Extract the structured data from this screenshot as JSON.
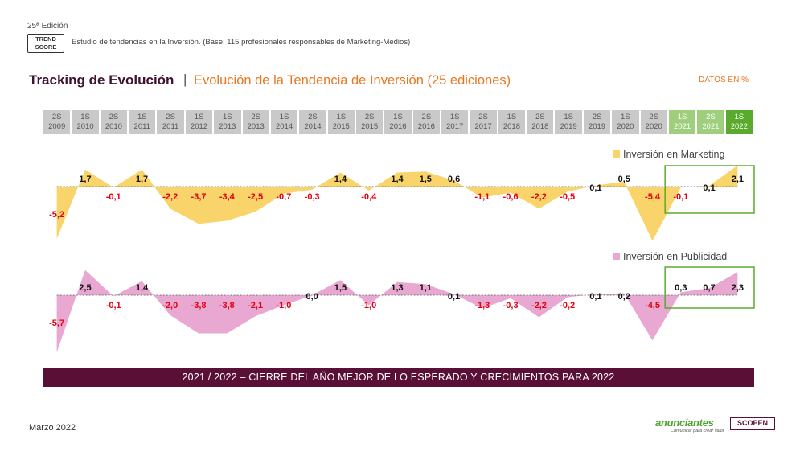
{
  "header": {
    "edition": "25ª Edición",
    "logo_line1": "TREND",
    "logo_line2": "SCORE",
    "study": "Estudio de tendencias en la Inversión. (Base: 115 profesionales responsables de Marketing-Medios)"
  },
  "title": {
    "main": "Tracking de Evolución",
    "separator": "|",
    "subtitle": "Evolución de la Tendencia de Inversión (25 ediciones)",
    "units": "DATOS EN %"
  },
  "periods": [
    {
      "half": "2S",
      "year": "2009",
      "style": "grey"
    },
    {
      "half": "1S",
      "year": "2010",
      "style": "grey"
    },
    {
      "half": "2S",
      "year": "2010",
      "style": "grey"
    },
    {
      "half": "1S",
      "year": "2011",
      "style": "grey"
    },
    {
      "half": "2S",
      "year": "2011",
      "style": "grey"
    },
    {
      "half": "1S",
      "year": "2012",
      "style": "grey"
    },
    {
      "half": "1S",
      "year": "2013",
      "style": "grey"
    },
    {
      "half": "2S",
      "year": "2013",
      "style": "grey"
    },
    {
      "half": "1S",
      "year": "2014",
      "style": "grey"
    },
    {
      "half": "2S",
      "year": "2014",
      "style": "grey"
    },
    {
      "half": "1S",
      "year": "2015",
      "style": "grey"
    },
    {
      "half": "2S",
      "year": "2015",
      "style": "grey"
    },
    {
      "half": "1S",
      "year": "2016",
      "style": "grey"
    },
    {
      "half": "2S",
      "year": "2016",
      "style": "grey"
    },
    {
      "half": "1S",
      "year": "2017",
      "style": "grey"
    },
    {
      "half": "2S",
      "year": "2017",
      "style": "grey"
    },
    {
      "half": "1S",
      "year": "2018",
      "style": "grey"
    },
    {
      "half": "2S",
      "year": "2018",
      "style": "grey"
    },
    {
      "half": "1S",
      "year": "2019",
      "style": "grey"
    },
    {
      "half": "2S",
      "year": "2019",
      "style": "grey"
    },
    {
      "half": "1S",
      "year": "2020",
      "style": "grey"
    },
    {
      "half": "2S",
      "year": "2020",
      "style": "grey"
    },
    {
      "half": "1S",
      "year": "2021",
      "style": "light"
    },
    {
      "half": "2S",
      "year": "2021",
      "style": "light"
    },
    {
      "half": "1S",
      "year": "2022",
      "style": "strong"
    }
  ],
  "chart_data": [
    {
      "type": "area",
      "legend": "Inversión en Marketing",
      "color": "#f9d46b",
      "values": [
        -5.2,
        1.7,
        -0.1,
        1.7,
        -2.2,
        -3.7,
        -3.4,
        -2.5,
        -0.7,
        -0.3,
        1.4,
        -0.4,
        1.4,
        1.5,
        0.6,
        -1.1,
        -0.6,
        -2.2,
        -0.5,
        0.1,
        0.5,
        -5.4,
        -0.1,
        0.1,
        2.1
      ],
      "labels": [
        "-5,2",
        "1,7",
        "-0,1",
        "1,7",
        "-2,2",
        "-3,7",
        "-3,4",
        "-2,5",
        "-0,7",
        "-0,3",
        "1,4",
        "-0,4",
        "1,4",
        "1,5",
        "0,6",
        "-1,1",
        "-0,6",
        "-2,2",
        "-0,5",
        "0,1",
        "0,5",
        "-5,4",
        "-0,1",
        "0,1",
        "2,1"
      ]
    },
    {
      "type": "area",
      "legend": "Inversión en Publicidad",
      "color": "#e9a8d1",
      "values": [
        -5.7,
        2.5,
        -0.1,
        1.4,
        -2.0,
        -3.8,
        -3.8,
        -2.1,
        -1.0,
        0.0,
        1.5,
        -1.0,
        1.3,
        1.1,
        0.1,
        -1.3,
        -0.3,
        -2.2,
        -0.2,
        0.1,
        0.2,
        -4.5,
        0.3,
        0.7,
        2.3
      ],
      "labels": [
        "-5,7",
        "2,5",
        "-0,1",
        "1,4",
        "-2,0",
        "-3,8",
        "-3,8",
        "-2,1",
        "-1,0",
        "0,0",
        "1,5",
        "-1,0",
        "1,3",
        "1,1",
        "0,1",
        "-1,3",
        "-0,3",
        "-2,2",
        "-0,2",
        "0,1",
        "0,2",
        "-4,5",
        "0,3",
        "0,7",
        "2,3"
      ]
    }
  ],
  "colors": {
    "negative_label": "#e3000f",
    "positive_label": "#111111",
    "highlight_box": "#5aab2d"
  },
  "banner": "2021 / 2022 – CIERRE DEL AÑO MEJOR DE LO ESPERADO Y CRECIMIENTOS PARA 2022",
  "footer": {
    "date": "Marzo 2022",
    "brand": "anunciantes",
    "brand_tagline": "Comunicar para crear valor",
    "partner": "SCOPEN"
  }
}
